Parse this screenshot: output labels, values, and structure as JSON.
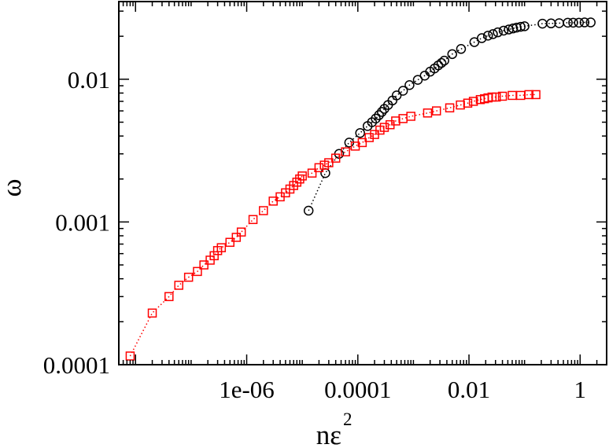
{
  "chart_data": {
    "type": "scatter",
    "title": "",
    "xlabel": "nε",
    "xlabel_superscript": "2",
    "ylabel": "ω",
    "x_scale": "log",
    "y_scale": "log",
    "xlim": [
      5e-09,
      3
    ],
    "ylim": [
      0.0001,
      0.035
    ],
    "x_ticks": [
      1e-06,
      0.0001,
      0.01,
      1
    ],
    "x_tick_labels": [
      "1e-06",
      "0.0001",
      "0.01",
      "1"
    ],
    "y_ticks": [
      0.0001,
      0.001,
      0.01
    ],
    "y_tick_labels": [
      "0.0001",
      "0.001",
      "0.01"
    ],
    "grid": false,
    "legend": "none",
    "series": [
      {
        "marker": "circle",
        "color": "#000000",
        "line": "dotted",
        "x": [
          1.3e-05,
          2.6e-05,
          4.6e-05,
          7e-05,
          0.00011,
          0.00015,
          0.00018,
          0.00021,
          0.00024,
          0.00027,
          0.0003,
          0.00035,
          0.00042,
          0.0005,
          0.00065,
          0.00085,
          0.0012,
          0.0016,
          0.002,
          0.0024,
          0.0028,
          0.0032,
          0.0036,
          0.005,
          0.0072,
          0.0125,
          0.017,
          0.022,
          0.027,
          0.033,
          0.042,
          0.052,
          0.062,
          0.072,
          0.085,
          0.1,
          0.21,
          0.3,
          0.42,
          0.6,
          0.75,
          0.95,
          1.2,
          1.55
        ],
        "y": [
          0.0012,
          0.0022,
          0.003,
          0.0036,
          0.0042,
          0.0047,
          0.005,
          0.0053,
          0.0056,
          0.0059,
          0.0062,
          0.0066,
          0.0071,
          0.0077,
          0.0083,
          0.0091,
          0.0099,
          0.0106,
          0.0113,
          0.0119,
          0.0125,
          0.013,
          0.0135,
          0.015,
          0.0163,
          0.0182,
          0.0194,
          0.0202,
          0.0207,
          0.0213,
          0.0219,
          0.0223,
          0.0227,
          0.023,
          0.0233,
          0.0235,
          0.0245,
          0.0246,
          0.0247,
          0.0249,
          0.0249,
          0.0249,
          0.025,
          0.025
        ]
      },
      {
        "marker": "square",
        "color": "#ff0000",
        "line": "dotted",
        "x": [
          8e-09,
          2e-08,
          4e-08,
          6e-08,
          9e-08,
          1.3e-07,
          1.7e-07,
          2.2e-07,
          2.6e-07,
          3e-07,
          3.5e-07,
          5e-07,
          6.5e-07,
          8e-07,
          1.3e-06,
          2e-06,
          3e-06,
          4e-06,
          5e-06,
          6e-06,
          7e-06,
          8e-06,
          9e-06,
          1e-05,
          1.5e-05,
          2e-05,
          2.5e-05,
          3e-05,
          4e-05,
          6e-05,
          9e-05,
          0.00012,
          0.00016,
          0.0002,
          0.00025,
          0.0003,
          0.00038,
          0.00048,
          0.00065,
          0.0009,
          0.0018,
          0.0026,
          0.0045,
          0.007,
          0.0095,
          0.012,
          0.016,
          0.019,
          0.022,
          0.026,
          0.031,
          0.04,
          0.06,
          0.085,
          0.12,
          0.16
        ],
        "y": [
          0.000115,
          0.00023,
          0.0003,
          0.00036,
          0.00041,
          0.00045,
          0.0005,
          0.00054,
          0.00058,
          0.00063,
          0.00066,
          0.00072,
          0.00078,
          0.00085,
          0.00104,
          0.0012,
          0.0014,
          0.0015,
          0.0016,
          0.0017,
          0.0018,
          0.0019,
          0.002,
          0.0021,
          0.0022,
          0.0024,
          0.0025,
          0.0026,
          0.0028,
          0.0031,
          0.0034,
          0.0036,
          0.0039,
          0.0041,
          0.0044,
          0.0046,
          0.0048,
          0.0051,
          0.0053,
          0.0055,
          0.0058,
          0.006,
          0.0063,
          0.0066,
          0.0068,
          0.007,
          0.0072,
          0.0073,
          0.0074,
          0.0075,
          0.0075,
          0.0076,
          0.0077,
          0.0077,
          0.0078,
          0.0078
        ]
      }
    ]
  }
}
